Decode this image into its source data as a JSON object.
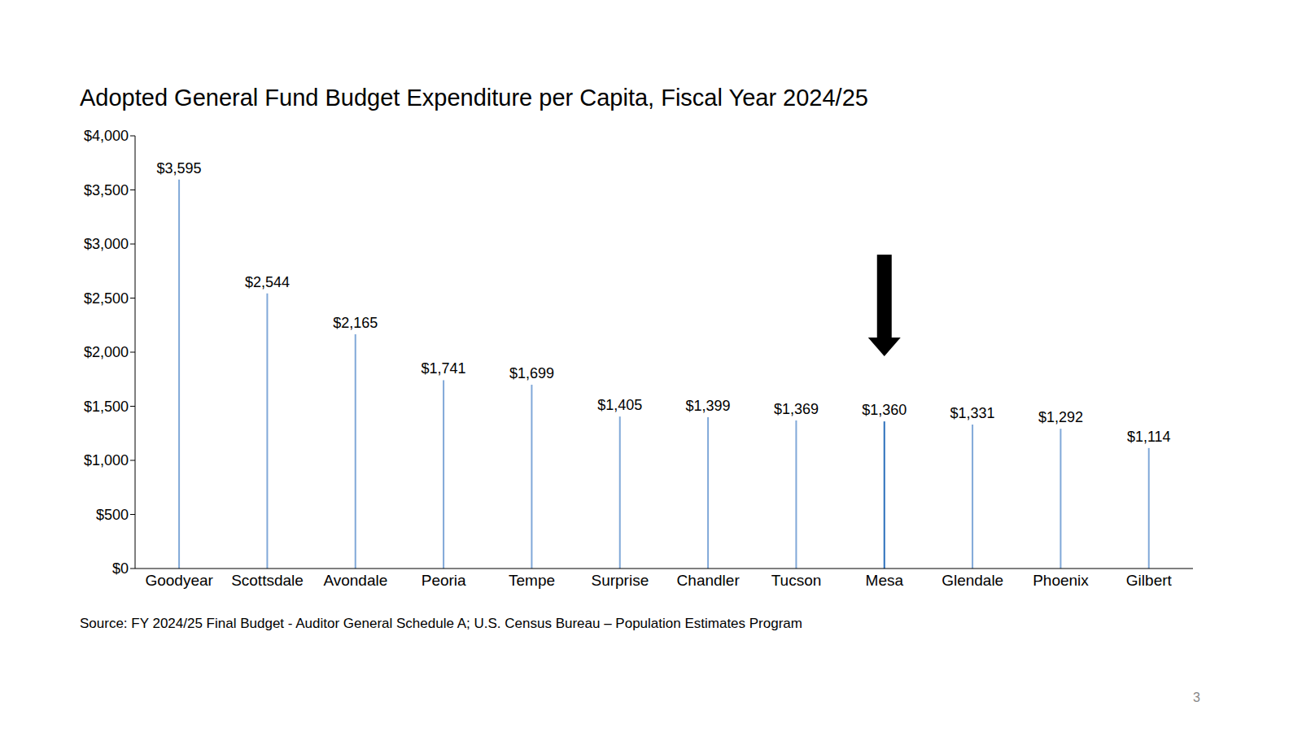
{
  "chart_data": {
    "type": "bar",
    "title": "Adopted General Fund Budget Expenditure per Capita, Fiscal Year 2024/25",
    "categories": [
      "Goodyear",
      "Scottsdale",
      "Avondale",
      "Peoria",
      "Tempe",
      "Surprise",
      "Chandler",
      "Tucson",
      "Mesa",
      "Glendale",
      "Phoenix",
      "Gilbert"
    ],
    "values": [
      3595,
      2544,
      2165,
      1741,
      1699,
      1405,
      1399,
      1369,
      1360,
      1331,
      1292,
      1114
    ],
    "value_labels": [
      "$3,595",
      "$2,544",
      "$2,165",
      "$1,741",
      "$1,699",
      "$1,405",
      "$1,399",
      "$1,369",
      "$1,360",
      "$1,331",
      "$1,292",
      "$1,114"
    ],
    "colors": [
      "#80a8d8",
      "#80a8d8",
      "#80a8d8",
      "#80a8d8",
      "#80a8d8",
      "#80a8d8",
      "#80a8d8",
      "#80a8d8",
      "#2a6ebb",
      "#80a8d8",
      "#80a8d8",
      "#80a8d8"
    ],
    "ylim": [
      0,
      4000
    ],
    "yticks": [
      {
        "value": 0,
        "label": "$0"
      },
      {
        "value": 500,
        "label": "$500"
      },
      {
        "value": 1000,
        "label": "$1,000"
      },
      {
        "value": 1500,
        "label": "$1,500"
      },
      {
        "value": 2000,
        "label": "$2,000"
      },
      {
        "value": 2500,
        "label": "$2,500"
      },
      {
        "value": 3000,
        "label": "$3,000"
      },
      {
        "value": 3500,
        "label": "$3,500"
      },
      {
        "value": 4000,
        "label": "$4,000"
      }
    ],
    "grid": false,
    "data_labels": true,
    "source": "Source: FY 2024/25 Final Budget - Auditor General Schedule A; U.S. Census Bureau – Population Estimates Program",
    "page_number": 3
  }
}
